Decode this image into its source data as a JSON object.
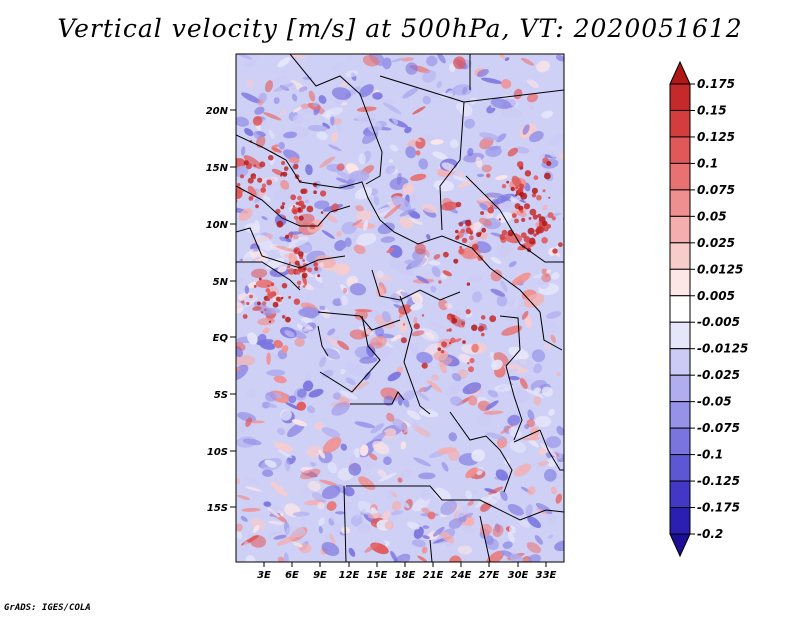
{
  "title": "Vertical velocity [m/s] at 500hPa, VT: 2020051612",
  "footer": "GrADS: IGES/COLA",
  "map": {
    "lat_labels": [
      "20N",
      "15N",
      "10N",
      "5N",
      "EQ",
      "5S",
      "10S",
      "15S"
    ],
    "lon_labels": [
      "3E",
      "6E",
      "9E",
      "12E",
      "15E",
      "18E",
      "21E",
      "24E",
      "27E",
      "30E",
      "33E"
    ]
  },
  "colorbar": {
    "labels": [
      "0.175",
      "0.15",
      "0.125",
      "0.1",
      "0.075",
      "0.05",
      "0.025",
      "0.0125",
      "0.005",
      "-0.005",
      "-0.0125",
      "-0.025",
      "-0.05",
      "-0.075",
      "-0.1",
      "-0.125",
      "-0.175",
      "-0.2"
    ],
    "colors": [
      "#b01818",
      "#c42a2a",
      "#d43d3d",
      "#e05858",
      "#e87272",
      "#ef8f8f",
      "#f5aeae",
      "#f9cccc",
      "#fde6e6",
      "#ffffff",
      "#e6e6fb",
      "#cccbf5",
      "#b0aeef",
      "#9692e8",
      "#7a74df",
      "#5e57d4",
      "#4338c6",
      "#2b1fb2",
      "#1c0f96"
    ]
  }
}
